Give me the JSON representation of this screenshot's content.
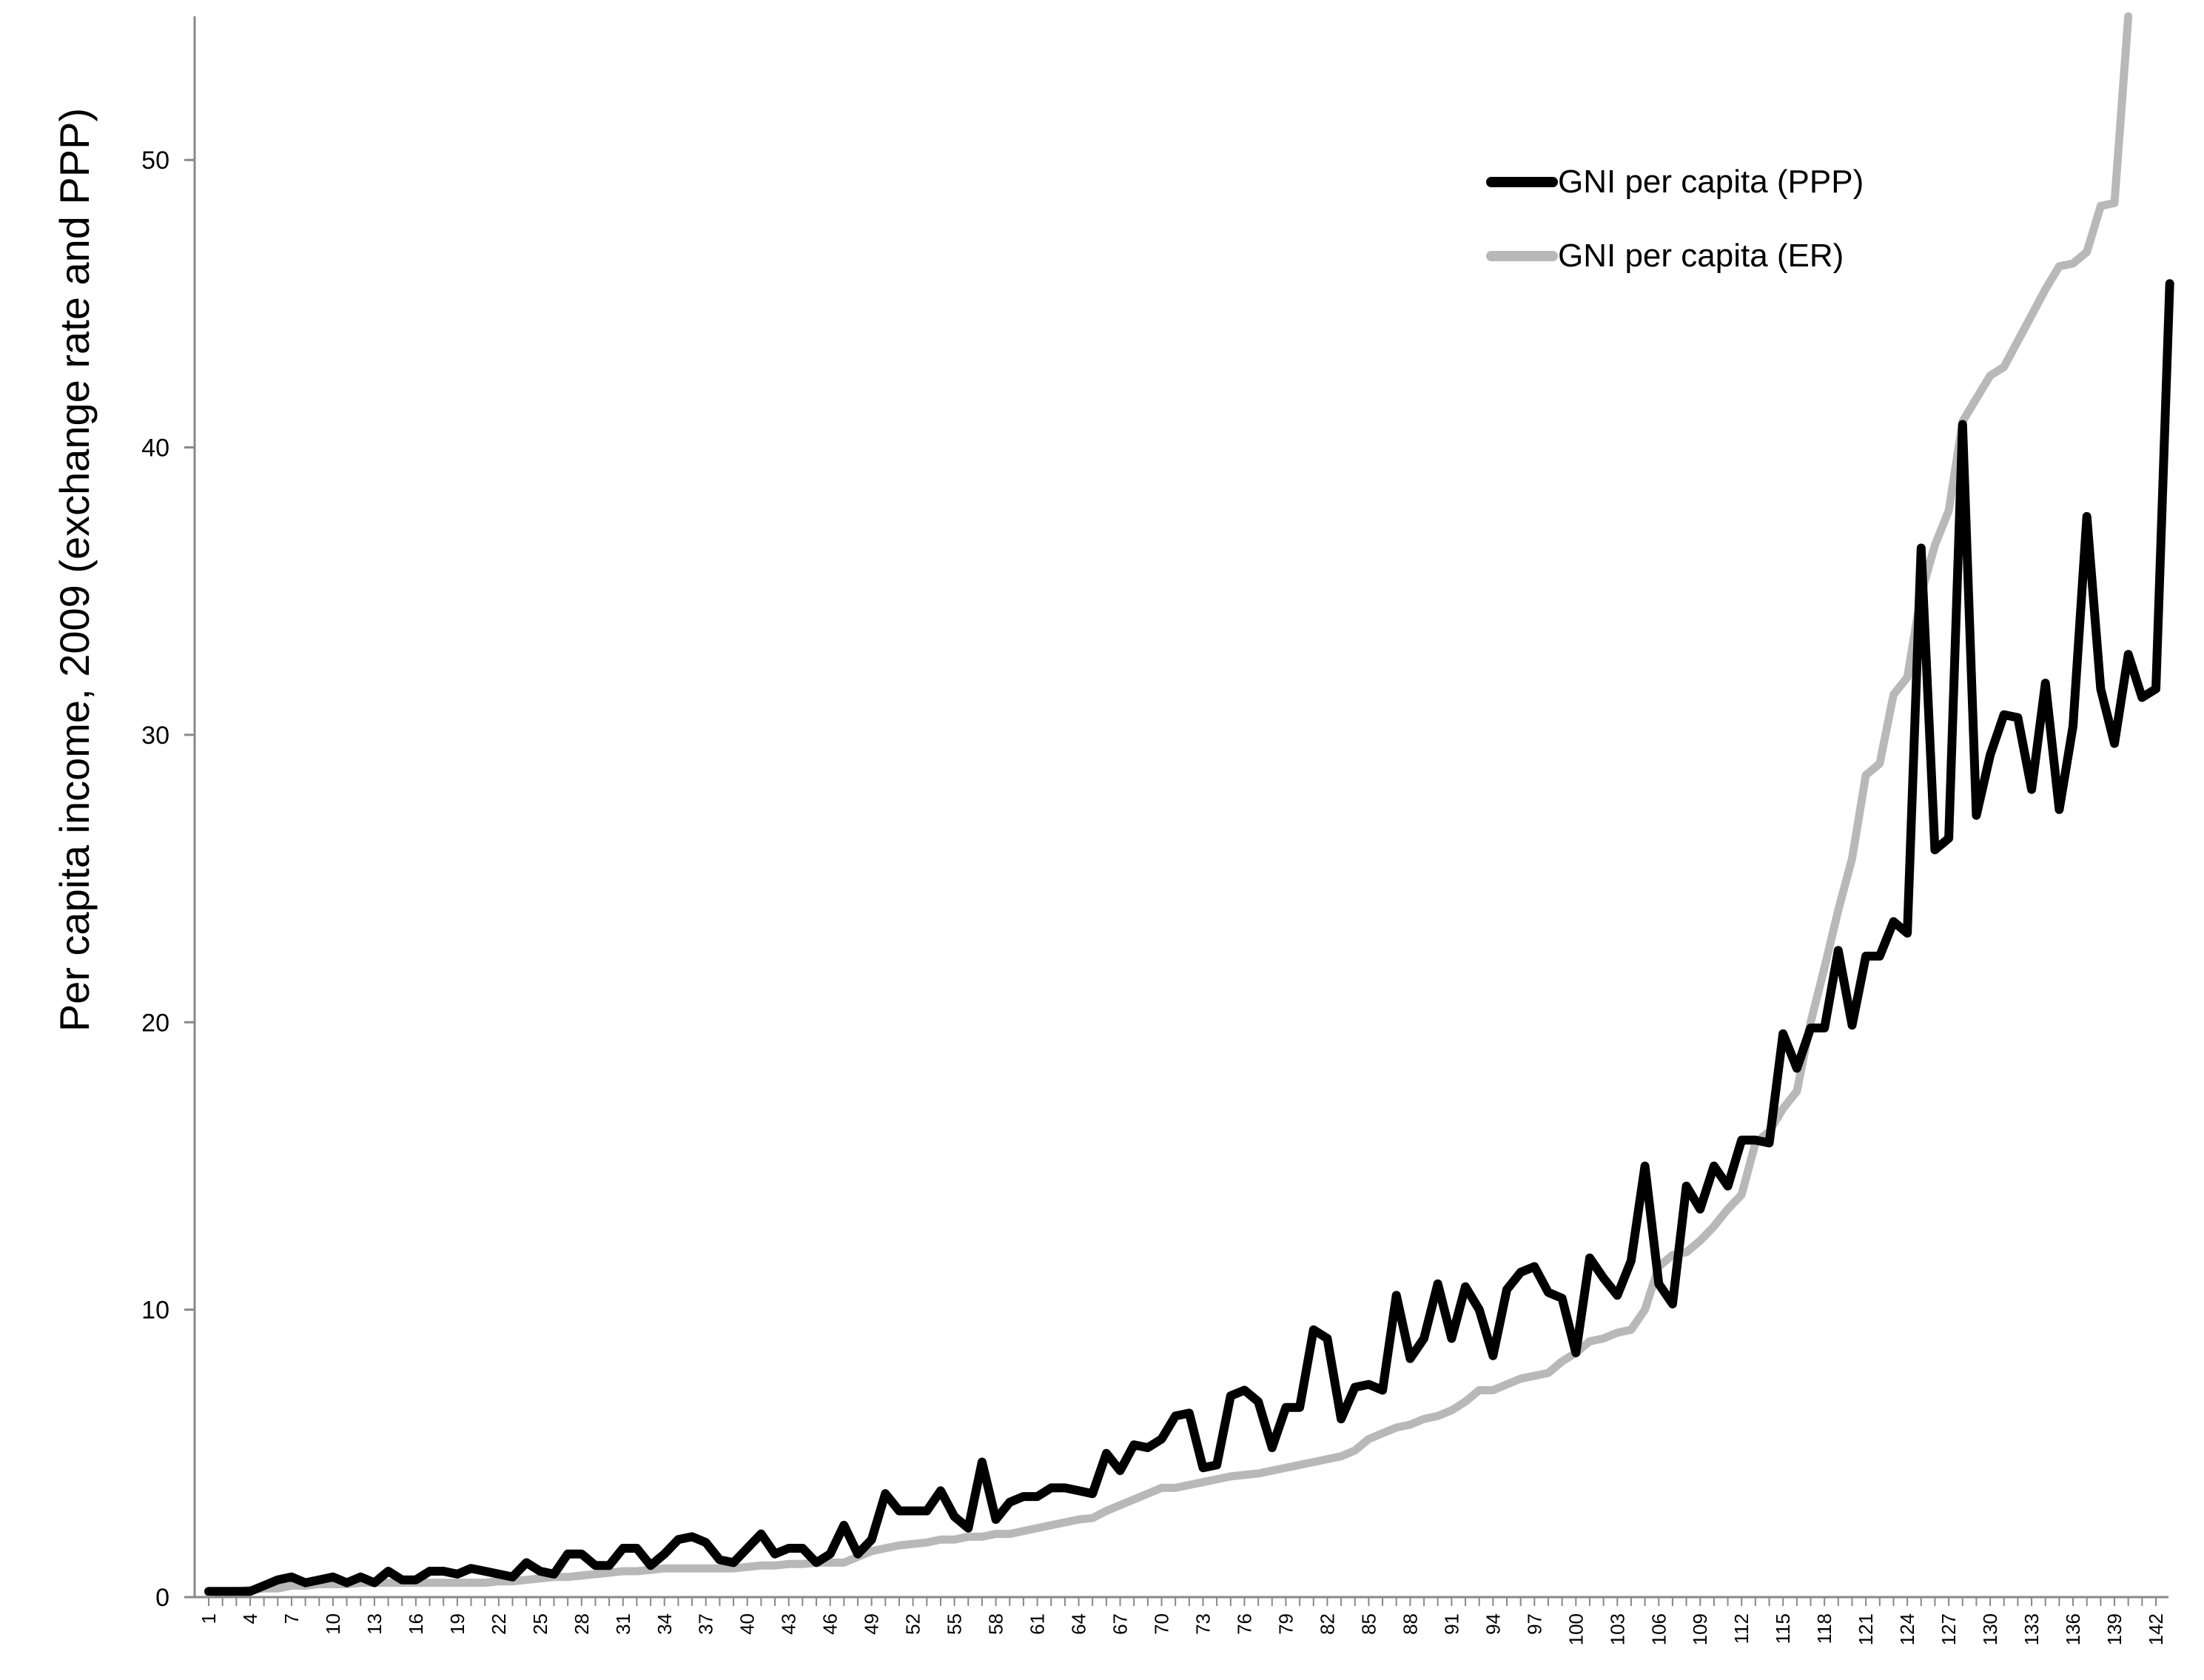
{
  "chart_data": {
    "type": "line",
    "title": "",
    "xlabel": "",
    "ylabel": "Per capita income, 2009 (exchange rate and PPP)",
    "xlim": [
      1,
      142
    ],
    "ylim": [
      0,
      55
    ],
    "y_ticks": [
      0,
      10,
      20,
      30,
      40,
      50
    ],
    "x_tick_labels": [
      "1",
      "4",
      "7",
      "10",
      "13",
      "16",
      "19",
      "22",
      "25",
      "28",
      "31",
      "34",
      "37",
      "40",
      "43",
      "46",
      "49",
      "52",
      "55",
      "58",
      "61",
      "64",
      "67",
      "70",
      "73",
      "76",
      "79",
      "82",
      "85",
      "88",
      "91",
      "94",
      "97",
      "100",
      "103",
      "106",
      "109",
      "112",
      "115",
      "118",
      "121",
      "124",
      "127",
      "130",
      "133",
      "136",
      "139",
      "142"
    ],
    "grid": false,
    "legend_position": "top-right",
    "series": [
      {
        "name": "GNI per capita (PPP)",
        "color": "#000000",
        "values": [
          0.2,
          0.2,
          0.2,
          0.2,
          0.4,
          0.6,
          0.7,
          0.5,
          0.6,
          0.7,
          0.5,
          0.7,
          0.5,
          0.9,
          0.6,
          0.6,
          0.9,
          0.9,
          0.8,
          1.0,
          0.9,
          0.8,
          0.7,
          1.2,
          0.9,
          0.8,
          1.5,
          1.5,
          1.1,
          1.1,
          1.7,
          1.7,
          1.1,
          1.5,
          2.0,
          2.1,
          1.9,
          1.3,
          1.2,
          1.7,
          2.2,
          1.5,
          1.7,
          1.7,
          1.2,
          1.5,
          2.5,
          1.5,
          2.0,
          3.6,
          3.0,
          3.0,
          3.0,
          3.7,
          2.8,
          2.4,
          4.7,
          2.7,
          3.3,
          3.5,
          3.5,
          3.8,
          3.8,
          3.7,
          3.6,
          5.0,
          4.4,
          5.3,
          5.2,
          5.5,
          6.3,
          6.4,
          4.5,
          4.6,
          7.0,
          7.2,
          6.8,
          5.2,
          6.6,
          6.6,
          9.3,
          9.0,
          6.2,
          7.3,
          7.4,
          7.2,
          10.5,
          8.3,
          9.0,
          10.9,
          9.0,
          10.8,
          10.0,
          8.4,
          10.7,
          11.3,
          11.5,
          10.6,
          10.4,
          8.5,
          11.8,
          11.1,
          10.5,
          11.7,
          15.0,
          10.9,
          10.2,
          14.3,
          13.5,
          15.0,
          14.3,
          15.9,
          15.9,
          15.8,
          19.6,
          18.4,
          19.8,
          19.8,
          22.5,
          19.9,
          22.3,
          22.3,
          23.5,
          23.1,
          36.5,
          26.0,
          26.4,
          40.8,
          27.2,
          29.3,
          30.7,
          30.6,
          28.1,
          31.8,
          27.4,
          30.3,
          37.6,
          31.6,
          29.7,
          32.8,
          31.3,
          31.6,
          45.7
        ]
      },
      {
        "name": "GNI per capita (ER)",
        "color": "#b8b8b8",
        "values": [
          0.15,
          0.2,
          0.2,
          0.25,
          0.3,
          0.3,
          0.4,
          0.4,
          0.45,
          0.45,
          0.45,
          0.5,
          0.5,
          0.5,
          0.5,
          0.5,
          0.5,
          0.5,
          0.5,
          0.5,
          0.5,
          0.55,
          0.55,
          0.6,
          0.65,
          0.7,
          0.7,
          0.75,
          0.8,
          0.85,
          0.9,
          0.9,
          0.95,
          1.0,
          1.0,
          1.0,
          1.0,
          1.0,
          1.0,
          1.05,
          1.1,
          1.1,
          1.15,
          1.15,
          1.2,
          1.2,
          1.2,
          1.4,
          1.6,
          1.7,
          1.8,
          1.85,
          1.9,
          2.0,
          2.0,
          2.1,
          2.1,
          2.2,
          2.2,
          2.3,
          2.4,
          2.5,
          2.6,
          2.7,
          2.75,
          3.0,
          3.2,
          3.4,
          3.6,
          3.8,
          3.8,
          3.9,
          4.0,
          4.1,
          4.2,
          4.25,
          4.3,
          4.4,
          4.5,
          4.6,
          4.7,
          4.8,
          4.9,
          5.1,
          5.5,
          5.7,
          5.9,
          6.0,
          6.2,
          6.3,
          6.5,
          6.8,
          7.2,
          7.2,
          7.4,
          7.6,
          7.7,
          7.8,
          8.2,
          8.5,
          8.9,
          9.0,
          9.2,
          9.3,
          10.0,
          11.5,
          11.9,
          12.0,
          12.4,
          12.9,
          13.5,
          14.0,
          15.8,
          16.2,
          17.0,
          17.6,
          20.0,
          21.9,
          23.9,
          25.7,
          28.6,
          29.0,
          31.4,
          32.0,
          34.9,
          36.6,
          37.8,
          40.9,
          41.7,
          42.5,
          42.8,
          43.7,
          44.6,
          45.5,
          46.3,
          46.4,
          46.8,
          48.4,
          48.5,
          55.0
        ]
      }
    ]
  }
}
